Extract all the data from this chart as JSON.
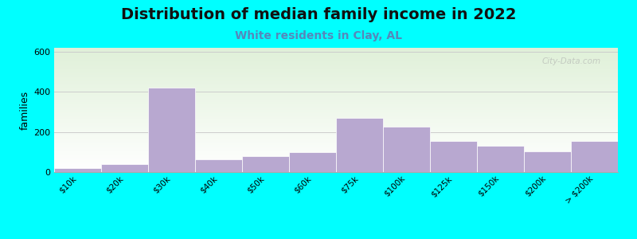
{
  "title": "Distribution of median family income in 2022",
  "subtitle": "White residents in Clay, AL",
  "ylabel": "families",
  "background_outer": "#00FFFF",
  "background_top_color": "#dff0d8",
  "background_bottom_color": "#ffffff",
  "bar_color": "#b8a8d0",
  "title_fontsize": 14,
  "subtitle_fontsize": 10,
  "subtitle_color": "#5588bb",
  "ylabel_fontsize": 9,
  "categories": [
    "$10k",
    "$20k",
    "$30k",
    "$40k",
    "$50k",
    "$60k",
    "$75k",
    "$100k",
    "$125k",
    "$150k",
    "$200k",
    "> $200k"
  ],
  "values": [
    20,
    38,
    420,
    65,
    80,
    100,
    270,
    225,
    155,
    130,
    105,
    155
  ],
  "ylim": [
    0,
    620
  ],
  "yticks": [
    0,
    200,
    400,
    600
  ],
  "watermark": "City-Data.com",
  "grid_color": "#cccccc",
  "grid_linewidth": 0.7
}
